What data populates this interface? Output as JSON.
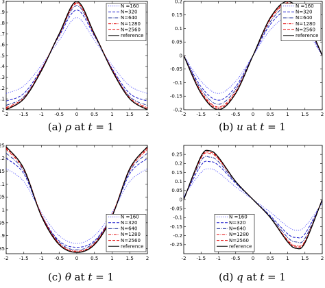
{
  "chart_data": [
    {
      "type": "line",
      "caption": {
        "label": "(a)",
        "symbol": "ρ",
        "rest": " at ",
        "tvar": "t",
        "eq": " = ",
        "tval": "1"
      },
      "xlim": [
        -2,
        2
      ],
      "ylim": [
        2,
        3
      ],
      "xticks": [
        "-2",
        "-1.5",
        "-1",
        "-0.5",
        "0",
        "0.5",
        "1",
        "1.5",
        "2"
      ],
      "xtick_values": [
        -2,
        -1.5,
        -1,
        -0.5,
        0,
        0.5,
        1,
        1.5,
        2
      ],
      "yticks": [
        "2",
        "2.1",
        "2.2",
        "2.3",
        "2.4",
        "2.5",
        "2.6",
        "2.7",
        "2.8",
        "2.9",
        "3"
      ],
      "ytick_values": [
        2,
        2.1,
        2.2,
        2.3,
        2.4,
        2.5,
        2.6,
        2.7,
        2.8,
        2.9,
        3
      ],
      "legend_position": "top-right",
      "x": [
        -2,
        -1.5,
        -1,
        -0.5,
        0,
        0.5,
        1,
        1.5,
        2
      ],
      "series": [
        {
          "name": "N =160",
          "color": "#5b5bff",
          "dash": "1.2,1.8",
          "values": [
            2.15,
            2.22,
            2.41,
            2.64,
            2.85,
            2.64,
            2.41,
            2.22,
            2.15
          ]
        },
        {
          "name": "N=320",
          "color": "#1a1acc",
          "dash": "4,2",
          "values": [
            2.08,
            2.15,
            2.38,
            2.68,
            2.92,
            2.68,
            2.38,
            2.15,
            2.08
          ]
        },
        {
          "name": "N=640",
          "color": "#223399",
          "dash": "5,1.5,1,1.5",
          "values": [
            2.04,
            2.12,
            2.37,
            2.69,
            2.96,
            2.69,
            2.37,
            2.12,
            2.04
          ]
        },
        {
          "name": "N=1280",
          "color": "#e00000",
          "dash": "4,1.5,1,1.5",
          "values": [
            2.02,
            2.11,
            2.37,
            2.69,
            2.98,
            2.69,
            2.37,
            2.11,
            2.02
          ]
        },
        {
          "name": "N=2560",
          "color": "#e00000",
          "dash": "4,2",
          "values": [
            2.01,
            2.1,
            2.37,
            2.7,
            2.99,
            2.7,
            2.37,
            2.1,
            2.01
          ]
        },
        {
          "name": "reference",
          "color": "#000000",
          "dash": "",
          "values": [
            2.0,
            2.1,
            2.36,
            2.7,
            3.0,
            2.7,
            2.36,
            2.1,
            2.0
          ]
        }
      ]
    },
    {
      "type": "line",
      "caption": {
        "label": "(b)",
        "symbol": "u",
        "rest": " at ",
        "tvar": "t",
        "eq": " = ",
        "tval": "1"
      },
      "xlim": [
        -2,
        2
      ],
      "ylim": [
        -0.2,
        0.2
      ],
      "xticks": [
        "-2",
        "-1.5",
        "-1",
        "-0.5",
        "0",
        "0.5",
        "1",
        "1.5",
        "2"
      ],
      "xtick_values": [
        -2,
        -1.5,
        -1,
        -0.5,
        0,
        0.5,
        1,
        1.5,
        2
      ],
      "yticks": [
        "-0.2",
        "-0.15",
        "-0.1",
        "-0.05",
        "0",
        "0.05",
        "0.1",
        "0.15",
        "0.2"
      ],
      "ytick_values": [
        -0.2,
        -0.15,
        -0.1,
        -0.05,
        0,
        0.05,
        0.1,
        0.15,
        0.2
      ],
      "legend_position": "top-right",
      "x": [
        -2,
        -1.5,
        -1,
        -0.5,
        0,
        0.5,
        1,
        1.5,
        2
      ],
      "series": [
        {
          "name": "N =160",
          "color": "#5b5bff",
          "dash": "1.2,1.8",
          "values": [
            0,
            -0.095,
            -0.14,
            -0.095,
            0,
            0.095,
            0.14,
            0.095,
            0
          ]
        },
        {
          "name": "N=320",
          "color": "#1a1acc",
          "dash": "4,2",
          "values": [
            0,
            -0.115,
            -0.165,
            -0.115,
            0,
            0.115,
            0.165,
            0.115,
            0
          ]
        },
        {
          "name": "N=640",
          "color": "#223399",
          "dash": "5,1.5,1,1.5",
          "values": [
            0,
            -0.125,
            -0.18,
            -0.125,
            0,
            0.125,
            0.18,
            0.125,
            0
          ]
        },
        {
          "name": "N=1280",
          "color": "#e00000",
          "dash": "4,1.5,1,1.5",
          "values": [
            0,
            -0.133,
            -0.19,
            -0.133,
            0,
            0.133,
            0.19,
            0.133,
            0
          ]
        },
        {
          "name": "N=2560",
          "color": "#e00000",
          "dash": "4,2",
          "values": [
            0,
            -0.137,
            -0.195,
            -0.137,
            0,
            0.137,
            0.195,
            0.137,
            0
          ]
        },
        {
          "name": "reference",
          "color": "#000000",
          "dash": "",
          "values": [
            0,
            -0.14,
            -0.2,
            -0.14,
            0,
            0.14,
            0.2,
            0.14,
            0
          ]
        }
      ]
    },
    {
      "type": "line",
      "caption": {
        "label": "(c)",
        "symbol": "θ",
        "rest": " at ",
        "tvar": "t",
        "eq": " = ",
        "tval": "1"
      },
      "xlim": [
        -2,
        2
      ],
      "ylim": [
        0.83,
        1.25
      ],
      "xticks": [
        "-2",
        "-1.5",
        "-1",
        "-0.5",
        "0",
        "0.5",
        "1",
        "1.5",
        "2"
      ],
      "xtick_values": [
        -2,
        -1.5,
        -1,
        -0.5,
        0,
        0.5,
        1,
        1.5,
        2
      ],
      "yticks": [
        "0.85",
        "0.9",
        "0.95",
        "1",
        "1.05",
        "1.1",
        "1.15",
        "1.2",
        "1.25"
      ],
      "ytick_values": [
        0.85,
        0.9,
        0.95,
        1,
        1.05,
        1.1,
        1.15,
        1.2,
        1.25
      ],
      "legend_position": "bottom-right",
      "x": [
        -2,
        -1.5,
        -1,
        -0.5,
        0,
        0.5,
        1,
        1.5,
        2
      ],
      "series": [
        {
          "name": "N =160",
          "color": "#5b5bff",
          "dash": "1.2,1.8",
          "values": [
            1.16,
            1.11,
            0.99,
            0.9,
            0.87,
            0.9,
            0.99,
            1.11,
            1.16
          ]
        },
        {
          "name": "N=320",
          "color": "#1a1acc",
          "dash": "4,2",
          "values": [
            1.2,
            1.14,
            0.98,
            0.88,
            0.855,
            0.88,
            0.98,
            1.14,
            1.2
          ]
        },
        {
          "name": "N=640",
          "color": "#223399",
          "dash": "5,1.5,1,1.5",
          "values": [
            1.22,
            1.15,
            0.98,
            0.875,
            0.845,
            0.875,
            0.98,
            1.15,
            1.22
          ]
        },
        {
          "name": "N=1280",
          "color": "#e00000",
          "dash": "4,1.5,1,1.5",
          "values": [
            1.235,
            1.155,
            0.98,
            0.87,
            0.84,
            0.87,
            0.98,
            1.155,
            1.235
          ]
        },
        {
          "name": "N=2560",
          "color": "#e00000",
          "dash": "4,2",
          "values": [
            1.24,
            1.16,
            0.98,
            0.868,
            0.837,
            0.868,
            0.98,
            1.16,
            1.24
          ]
        },
        {
          "name": "reference",
          "color": "#000000",
          "dash": "",
          "values": [
            1.245,
            1.16,
            0.975,
            0.865,
            0.835,
            0.865,
            0.975,
            1.16,
            1.245
          ]
        }
      ]
    },
    {
      "type": "line",
      "caption": {
        "label": "(d)",
        "symbol": "q",
        "rest": " at ",
        "tvar": "t",
        "eq": " = ",
        "tval": "1"
      },
      "xlim": [
        -2,
        2
      ],
      "ylim": [
        -0.3,
        0.3
      ],
      "xticks": [
        "-2",
        "-1.5",
        "-1",
        "-0.5",
        "0",
        "0.5",
        "1",
        "1.5",
        "2"
      ],
      "xtick_values": [
        -2,
        -1.5,
        -1,
        -0.5,
        0,
        0.5,
        1,
        1.5,
        2
      ],
      "yticks": [
        "-0.25",
        "-0.2",
        "-0.15",
        "-0.1",
        "-0.05",
        "0",
        "0.05",
        "0.1",
        "0.15",
        "0.2",
        "0.25"
      ],
      "ytick_values": [
        -0.25,
        -0.2,
        -0.15,
        -0.1,
        -0.05,
        0,
        0.05,
        0.1,
        0.15,
        0.2,
        0.25
      ],
      "legend_position": "bottom-left",
      "x": [
        -2,
        -1.5,
        -1.25,
        -1,
        -0.5,
        0,
        0.5,
        1,
        1.25,
        1.5,
        2
      ],
      "series": [
        {
          "name": "N =160",
          "color": "#5b5bff",
          "dash": "1.2,1.8",
          "values": [
            0.02,
            0.15,
            0.17,
            0.15,
            0.07,
            0,
            -0.07,
            -0.15,
            -0.17,
            -0.15,
            -0.02
          ]
        },
        {
          "name": "N=320",
          "color": "#1a1acc",
          "dash": "4,2",
          "values": [
            0.01,
            0.19,
            0.21,
            0.19,
            0.09,
            0,
            -0.09,
            -0.19,
            -0.21,
            -0.19,
            -0.01
          ]
        },
        {
          "name": "N=640",
          "color": "#223399",
          "dash": "5,1.5,1,1.5",
          "values": [
            0.005,
            0.215,
            0.235,
            0.21,
            0.095,
            0,
            -0.095,
            -0.21,
            -0.235,
            -0.215,
            -0.005
          ]
        },
        {
          "name": "N=1280",
          "color": "#e00000",
          "dash": "4,1.5,1,1.5",
          "values": [
            0,
            0.23,
            0.255,
            0.225,
            0.1,
            0,
            -0.1,
            -0.225,
            -0.255,
            -0.23,
            0
          ]
        },
        {
          "name": "N=2560",
          "color": "#e00000",
          "dash": "4,2",
          "values": [
            0,
            0.235,
            0.262,
            0.23,
            0.1,
            0,
            -0.1,
            -0.23,
            -0.262,
            -0.235,
            0
          ]
        },
        {
          "name": "reference",
          "color": "#000000",
          "dash": "",
          "values": [
            0,
            0.24,
            0.27,
            0.235,
            0.1,
            0,
            -0.1,
            -0.235,
            -0.27,
            -0.24,
            0
          ]
        }
      ]
    }
  ]
}
